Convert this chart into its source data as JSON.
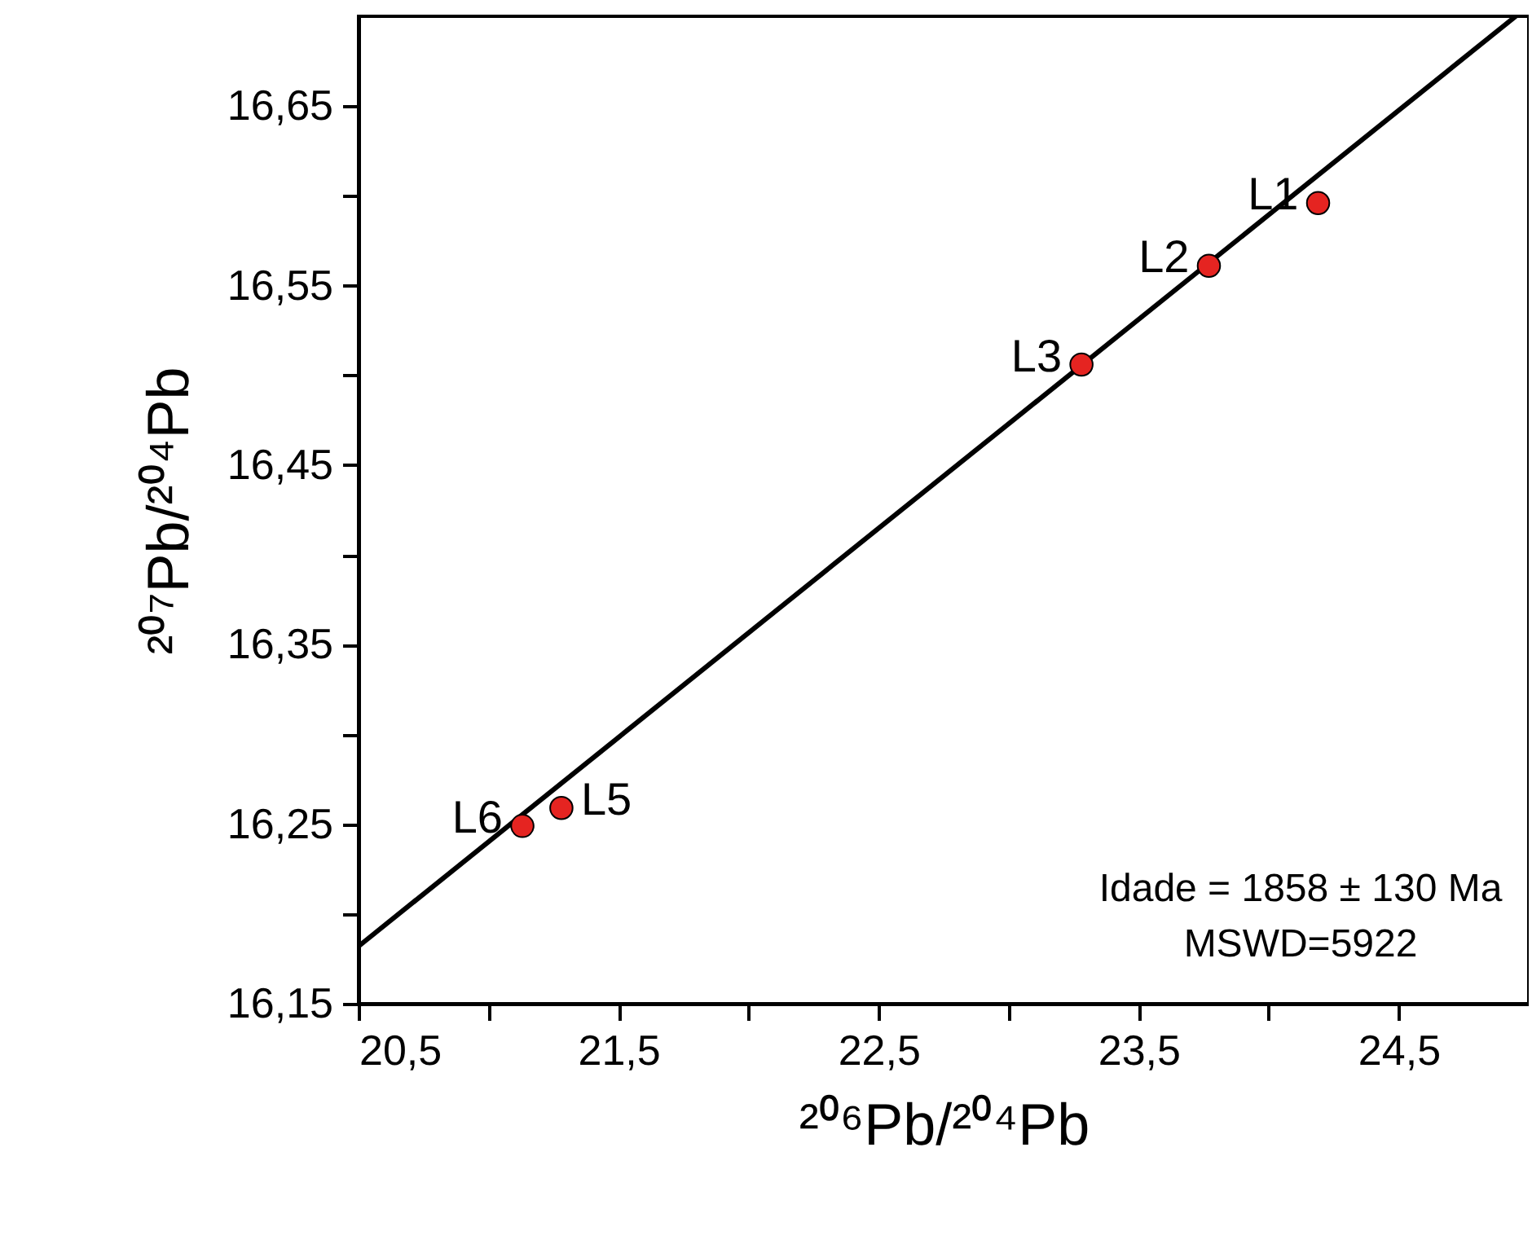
{
  "chart_data": {
    "type": "scatter",
    "xlabel": "²⁰⁶Pb/²⁰⁴Pb",
    "ylabel": "²⁰⁷Pb/²⁰⁴Pb",
    "xlim": [
      20.5,
      25.0
    ],
    "ylim": [
      16.15,
      16.7
    ],
    "xticks": [
      {
        "value": 20.5,
        "label": "20,5"
      },
      {
        "value": 21.0,
        "label": null
      },
      {
        "value": 21.5,
        "label": "21,5"
      },
      {
        "value": 22.0,
        "label": null
      },
      {
        "value": 22.5,
        "label": "22,5"
      },
      {
        "value": 23.0,
        "label": null
      },
      {
        "value": 23.5,
        "label": "23,5"
      },
      {
        "value": 24.0,
        "label": null
      },
      {
        "value": 24.5,
        "label": "24,5"
      }
    ],
    "yticks": [
      {
        "value": 16.15,
        "label": "16,15"
      },
      {
        "value": 16.2,
        "label": null
      },
      {
        "value": 16.25,
        "label": "16,25"
      },
      {
        "value": 16.3,
        "label": null
      },
      {
        "value": 16.35,
        "label": "16,35"
      },
      {
        "value": 16.4,
        "label": null
      },
      {
        "value": 16.45,
        "label": "16,45"
      },
      {
        "value": 16.5,
        "label": null
      },
      {
        "value": 16.55,
        "label": "16,55"
      },
      {
        "value": 16.6,
        "label": null
      },
      {
        "value": 16.65,
        "label": "16,65"
      }
    ],
    "grid": false,
    "marker": "circle",
    "series": [
      {
        "type": "scatter",
        "color": "#e52421",
        "x": [
          24.19,
          23.77,
          23.28,
          21.28,
          21.13
        ],
        "values": [
          16.596,
          16.561,
          16.506,
          16.259,
          16.249
        ]
      },
      {
        "type": "line",
        "color": "#000000",
        "marker": "none",
        "line_style": "solid",
        "x": [
          20.5,
          24.95
        ],
        "values": [
          16.182,
          16.7
        ]
      }
    ],
    "annotations": [
      {
        "text": "L1",
        "x": 24.19,
        "y": 16.596
      },
      {
        "text": "L2",
        "x": 23.77,
        "y": 16.561
      },
      {
        "text": "L3",
        "x": 23.28,
        "y": 16.506
      },
      {
        "text": "L5",
        "x": 21.28,
        "y": 16.259
      },
      {
        "text": "L6",
        "x": 21.13,
        "y": 16.249
      },
      "Idade = 1858 ± 130 Ma",
      "MSWD=5922"
    ]
  }
}
